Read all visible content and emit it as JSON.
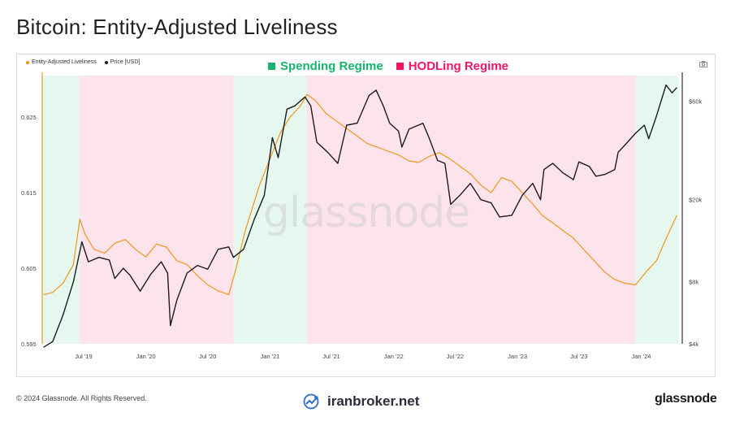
{
  "title": "Bitcoin: Entity-Adjusted Liveliness",
  "legend_small": {
    "liveliness_label": "Entity-Adjusted Liveliness",
    "price_label": "Price [USD]"
  },
  "regime_legend": {
    "spending_label": "Spending Regime",
    "hodling_label": "HODLing Regime"
  },
  "watermark": "glassnode",
  "footer": {
    "copyright": "© 2024 Glassnode. All Rights Reserved.",
    "center_brand": "iranbroker.net",
    "right_brand": "glassnode"
  },
  "colors": {
    "liveliness": "#f0961c",
    "price": "#1c1c1c",
    "spending_fill": "#e5f7ef",
    "hodling_fill": "#fde3ec",
    "spending_legend": "#16b36e",
    "hodling_legend": "#ee1665"
  },
  "icons": {
    "camera": "camera-icon",
    "center_logo": "trend-arrow-icon"
  },
  "chart_data": {
    "type": "line",
    "title": "Bitcoin: Entity-Adjusted Liveliness",
    "x_ticks": [
      {
        "label": "Jul '19",
        "date": "2019-07-01"
      },
      {
        "label": "Jan '20",
        "date": "2020-01-01"
      },
      {
        "label": "Jul '20",
        "date": "2020-07-01"
      },
      {
        "label": "Jan '21",
        "date": "2021-01-01"
      },
      {
        "label": "Jul '21",
        "date": "2021-07-01"
      },
      {
        "label": "Jan '22",
        "date": "2022-01-01"
      },
      {
        "label": "Jul '22",
        "date": "2022-07-01"
      },
      {
        "label": "Jan '23",
        "date": "2023-01-01"
      },
      {
        "label": "Jul '23",
        "date": "2023-07-01"
      },
      {
        "label": "Jan '24",
        "date": "2024-01-01"
      }
    ],
    "x_range": [
      "2019-03-01",
      "2024-05-01"
    ],
    "y_left": {
      "ticks": [
        "0.595",
        "0.605",
        "0.615",
        "0.625"
      ],
      "range": [
        0.595,
        0.6305
      ]
    },
    "y_right": {
      "ticks": [
        "$4k",
        "$8k",
        "$20k",
        "$60k"
      ],
      "scale": "log",
      "range": [
        4000,
        80000
      ]
    },
    "regimes": [
      {
        "type": "spending",
        "start": "2019-03-01",
        "end": "2019-06-20"
      },
      {
        "type": "hodling",
        "start": "2019-06-20",
        "end": "2020-09-15"
      },
      {
        "type": "spending",
        "start": "2020-09-15",
        "end": "2021-04-20"
      },
      {
        "type": "hodling",
        "start": "2021-04-20",
        "end": "2023-12-15"
      },
      {
        "type": "spending",
        "start": "2023-12-15",
        "end": "2024-04-20"
      }
    ],
    "series": [
      {
        "name": "Entity-Adjusted Liveliness",
        "axis": "left",
        "points": [
          [
            "2019-03-05",
            0.6015
          ],
          [
            "2019-04-01",
            0.6018
          ],
          [
            "2019-05-01",
            0.603
          ],
          [
            "2019-06-01",
            0.6055
          ],
          [
            "2019-06-20",
            0.6115
          ],
          [
            "2019-07-05",
            0.6095
          ],
          [
            "2019-08-01",
            0.6075
          ],
          [
            "2019-09-01",
            0.607
          ],
          [
            "2019-10-01",
            0.6083
          ],
          [
            "2019-11-01",
            0.6088
          ],
          [
            "2019-12-01",
            0.6075
          ],
          [
            "2020-01-01",
            0.6065
          ],
          [
            "2020-02-01",
            0.6082
          ],
          [
            "2020-03-01",
            0.6078
          ],
          [
            "2020-04-01",
            0.606
          ],
          [
            "2020-05-01",
            0.6055
          ],
          [
            "2020-06-01",
            0.604
          ],
          [
            "2020-07-01",
            0.6028
          ],
          [
            "2020-08-01",
            0.602
          ],
          [
            "2020-09-01",
            0.6015
          ],
          [
            "2020-09-20",
            0.6045
          ],
          [
            "2020-10-20",
            0.61
          ],
          [
            "2020-12-01",
            0.616
          ],
          [
            "2021-01-01",
            0.6195
          ],
          [
            "2021-02-01",
            0.623
          ],
          [
            "2021-03-01",
            0.625
          ],
          [
            "2021-04-01",
            0.6265
          ],
          [
            "2021-04-20",
            0.628
          ],
          [
            "2021-05-15",
            0.6272
          ],
          [
            "2021-06-15",
            0.6255
          ],
          [
            "2021-07-15",
            0.6245
          ],
          [
            "2021-08-15",
            0.6235
          ],
          [
            "2021-09-15",
            0.6225
          ],
          [
            "2021-10-15",
            0.6215
          ],
          [
            "2021-11-15",
            0.621
          ],
          [
            "2021-12-15",
            0.6205
          ],
          [
            "2022-01-15",
            0.62
          ],
          [
            "2022-02-15",
            0.6192
          ],
          [
            "2022-03-15",
            0.619
          ],
          [
            "2022-04-15",
            0.6198
          ],
          [
            "2022-05-15",
            0.6203
          ],
          [
            "2022-06-15",
            0.6195
          ],
          [
            "2022-07-15",
            0.6185
          ],
          [
            "2022-08-15",
            0.6175
          ],
          [
            "2022-09-15",
            0.616
          ],
          [
            "2022-10-15",
            0.615
          ],
          [
            "2022-11-15",
            0.617
          ],
          [
            "2022-12-15",
            0.6165
          ],
          [
            "2023-01-15",
            0.615
          ],
          [
            "2023-02-15",
            0.6135
          ],
          [
            "2023-03-15",
            0.612
          ],
          [
            "2023-04-15",
            0.611
          ],
          [
            "2023-05-15",
            0.61
          ],
          [
            "2023-06-15",
            0.609
          ],
          [
            "2023-07-15",
            0.6075
          ],
          [
            "2023-08-15",
            0.606
          ],
          [
            "2023-09-15",
            0.6045
          ],
          [
            "2023-10-15",
            0.6035
          ],
          [
            "2023-11-15",
            0.603
          ],
          [
            "2023-12-15",
            0.6028
          ],
          [
            "2024-01-15",
            0.6045
          ],
          [
            "2024-02-15",
            0.606
          ],
          [
            "2024-03-15",
            0.609
          ],
          [
            "2024-04-15",
            0.612
          ]
        ]
      },
      {
        "name": "Price [USD]",
        "axis": "right",
        "points": [
          [
            "2019-03-05",
            3850
          ],
          [
            "2019-04-01",
            4100
          ],
          [
            "2019-05-01",
            5500
          ],
          [
            "2019-06-01",
            8000
          ],
          [
            "2019-06-26",
            12500
          ],
          [
            "2019-07-15",
            10000
          ],
          [
            "2019-08-15",
            10500
          ],
          [
            "2019-09-15",
            10200
          ],
          [
            "2019-10-01",
            8300
          ],
          [
            "2019-10-26",
            9300
          ],
          [
            "2019-11-15",
            8600
          ],
          [
            "2019-12-15",
            7200
          ],
          [
            "2020-01-15",
            8700
          ],
          [
            "2020-02-15",
            10000
          ],
          [
            "2020-03-05",
            8800
          ],
          [
            "2020-03-13",
            4900
          ],
          [
            "2020-04-01",
            6500
          ],
          [
            "2020-05-01",
            8800
          ],
          [
            "2020-06-01",
            9600
          ],
          [
            "2020-07-01",
            9200
          ],
          [
            "2020-08-01",
            11500
          ],
          [
            "2020-09-01",
            11800
          ],
          [
            "2020-09-15",
            10500
          ],
          [
            "2020-10-15",
            11500
          ],
          [
            "2020-11-15",
            16000
          ],
          [
            "2020-12-15",
            21000
          ],
          [
            "2021-01-08",
            40000
          ],
          [
            "2021-01-25",
            32000
          ],
          [
            "2021-02-20",
            55000
          ],
          [
            "2021-03-15",
            57000
          ],
          [
            "2021-04-14",
            63000
          ],
          [
            "2021-05-01",
            57000
          ],
          [
            "2021-05-19",
            38000
          ],
          [
            "2021-06-20",
            34000
          ],
          [
            "2021-07-20",
            30000
          ],
          [
            "2021-08-15",
            46000
          ],
          [
            "2021-09-15",
            47000
          ],
          [
            "2021-10-20",
            64000
          ],
          [
            "2021-11-10",
            68000
          ],
          [
            "2021-12-01",
            57000
          ],
          [
            "2021-12-20",
            47000
          ],
          [
            "2022-01-15",
            43000
          ],
          [
            "2022-01-25",
            36000
          ],
          [
            "2022-02-15",
            44000
          ],
          [
            "2022-03-28",
            47000
          ],
          [
            "2022-04-15",
            40000
          ],
          [
            "2022-05-10",
            31000
          ],
          [
            "2022-06-01",
            30000
          ],
          [
            "2022-06-18",
            19000
          ],
          [
            "2022-07-15",
            21000
          ],
          [
            "2022-08-15",
            24000
          ],
          [
            "2022-09-15",
            20000
          ],
          [
            "2022-10-15",
            19300
          ],
          [
            "2022-11-09",
            16500
          ],
          [
            "2022-12-15",
            16800
          ],
          [
            "2023-01-15",
            21000
          ],
          [
            "2023-02-15",
            24000
          ],
          [
            "2023-03-10",
            20000
          ],
          [
            "2023-03-20",
            28000
          ],
          [
            "2023-04-15",
            30000
          ],
          [
            "2023-05-15",
            27000
          ],
          [
            "2023-06-15",
            25000
          ],
          [
            "2023-07-01",
            30500
          ],
          [
            "2023-08-01",
            29000
          ],
          [
            "2023-08-20",
            26000
          ],
          [
            "2023-09-15",
            26500
          ],
          [
            "2023-10-15",
            28000
          ],
          [
            "2023-10-25",
            34000
          ],
          [
            "2023-11-15",
            37000
          ],
          [
            "2023-12-15",
            42000
          ],
          [
            "2024-01-10",
            46000
          ],
          [
            "2024-01-23",
            39500
          ],
          [
            "2024-02-15",
            51000
          ],
          [
            "2024-03-14",
            72000
          ],
          [
            "2024-04-01",
            66000
          ],
          [
            "2024-04-15",
            70000
          ]
        ]
      }
    ]
  }
}
